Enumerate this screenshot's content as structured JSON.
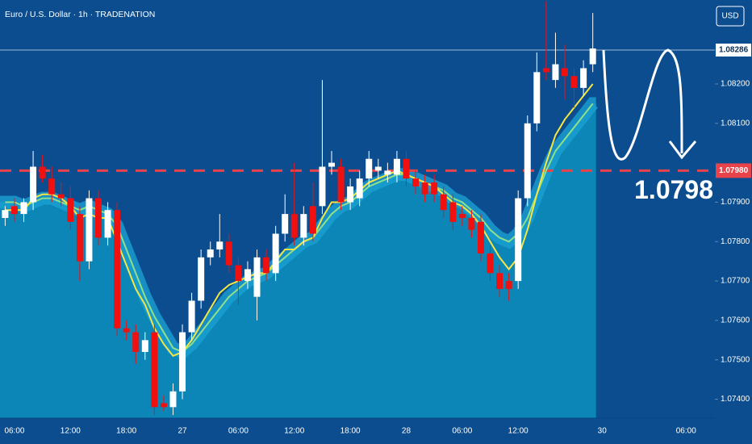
{
  "chart_data": {
    "type": "candlestick",
    "title": "Euro / U.S. Dollar · 1h · TRADENATION",
    "currency": "USD",
    "categories": [
      null,
      "06:00",
      null,
      null,
      null,
      null,
      null,
      "12:00",
      null,
      null,
      null,
      null,
      null,
      "18:00",
      null,
      null,
      null,
      null,
      null,
      "27",
      null,
      null,
      null,
      null,
      null,
      "06:00",
      null,
      null,
      null,
      null,
      null,
      "12:00",
      null,
      null,
      null,
      null,
      null,
      "18:00",
      null,
      null,
      null,
      null,
      null,
      "28",
      null,
      null,
      null,
      null,
      null,
      "06:00",
      null,
      null,
      null,
      null,
      null,
      "12:00",
      null,
      null,
      null,
      null,
      null,
      null,
      null,
      null,
      "30",
      null,
      null,
      null,
      null,
      null,
      null,
      null,
      null,
      "06:00"
    ],
    "open": [
      1.0786,
      1.0789,
      1.0787,
      1.079,
      1.0799,
      1.0796,
      1.0792,
      1.0791,
      1.0787,
      1.0775,
      1.0791,
      1.0781,
      1.0788,
      1.0758,
      1.0757,
      1.0752,
      1.0757,
      1.0739,
      1.0738,
      1.0742,
      1.0757,
      1.0765,
      1.0776,
      1.0778,
      1.078,
      1.0774,
      1.077,
      1.0766,
      1.0776,
      1.0772,
      1.0782,
      1.0787,
      1.0781,
      1.0789,
      1.0789,
      1.0799,
      1.0799,
      1.079,
      1.0791,
      1.0796,
      1.0798,
      1.0797,
      1.0797,
      1.0801,
      1.0796,
      1.0795,
      1.0795,
      1.0792,
      1.079,
      1.0787,
      1.0786,
      1.0785,
      1.0777,
      1.0772,
      1.077,
      1.077,
      1.0791,
      1.081,
      1.0824,
      1.0821,
      1.0824,
      1.0822,
      1.0819,
      1.0825,
      null,
      null,
      null,
      null,
      null,
      null,
      null,
      null,
      null,
      null
    ],
    "high": [
      1.0789,
      1.0791,
      1.0791,
      1.0803,
      1.0802,
      1.0799,
      1.0795,
      1.0794,
      1.0789,
      1.0793,
      1.0793,
      1.079,
      1.079,
      1.076,
      1.0759,
      1.0757,
      1.0759,
      1.0741,
      1.0744,
      1.0759,
      1.0767,
      1.0778,
      1.078,
      1.0787,
      1.0782,
      1.0776,
      1.0775,
      1.0778,
      1.0778,
      1.0784,
      1.0792,
      1.08,
      1.0789,
      1.0795,
      1.0821,
      1.0803,
      1.0801,
      1.0796,
      1.0798,
      1.0803,
      1.0801,
      1.08,
      1.0803,
      1.0803,
      1.0798,
      1.0797,
      1.0797,
      1.0794,
      1.0792,
      1.0789,
      1.0788,
      1.0787,
      1.0779,
      1.0774,
      1.0772,
      1.0793,
      1.0812,
      1.0828,
      1.0841,
      1.0833,
      1.083,
      1.0824,
      1.0826,
      1.0838,
      null,
      null,
      null,
      null,
      null,
      null,
      null,
      null,
      null,
      null
    ],
    "low": [
      1.0784,
      1.0785,
      1.0785,
      1.0788,
      1.0795,
      1.079,
      1.0789,
      1.0783,
      1.077,
      1.0773,
      1.0779,
      1.0779,
      1.0756,
      1.0755,
      1.0749,
      1.075,
      1.0736,
      1.0737,
      1.0736,
      1.074,
      1.0755,
      1.0763,
      1.0774,
      1.0776,
      1.0772,
      1.0764,
      1.0768,
      1.076,
      1.077,
      1.077,
      1.078,
      1.0779,
      1.0779,
      1.078,
      1.0787,
      1.0797,
      1.0788,
      1.0788,
      1.0789,
      1.0794,
      1.0796,
      1.0795,
      1.0795,
      1.0794,
      1.0792,
      1.079,
      1.079,
      1.0786,
      1.0783,
      1.0784,
      1.0781,
      1.0775,
      1.077,
      1.0766,
      1.0765,
      1.0768,
      1.0789,
      1.0808,
      1.0821,
      1.0819,
      1.0816,
      1.0814,
      1.0817,
      1.0823,
      null,
      null,
      null,
      null,
      null,
      null,
      null,
      null,
      null,
      null
    ],
    "close": [
      1.0788,
      1.0787,
      1.079,
      1.0799,
      1.0796,
      1.0792,
      1.0791,
      1.0785,
      1.0775,
      1.0791,
      1.0781,
      1.0788,
      1.0758,
      1.0757,
      1.0752,
      1.0755,
      1.0738,
      1.0738,
      1.0742,
      1.0757,
      1.0765,
      1.0776,
      1.0778,
      1.078,
      1.0774,
      1.077,
      1.0773,
      1.0776,
      1.0772,
      1.0782,
      1.0787,
      1.0781,
      1.0787,
      1.0782,
      1.0799,
      1.08,
      1.079,
      1.0794,
      1.0796,
      1.0801,
      1.0799,
      1.0798,
      1.0801,
      1.0796,
      1.0794,
      1.0792,
      1.0792,
      1.0788,
      1.0785,
      1.0786,
      1.0783,
      1.0777,
      1.0772,
      1.0768,
      1.0768,
      1.0791,
      1.081,
      1.0823,
      1.0823,
      1.0825,
      1.0822,
      1.0819,
      1.0824,
      1.0829,
      null,
      null,
      null,
      null,
      null,
      null,
      null,
      null,
      null,
      null
    ],
    "ma_fast": [
      1.0788,
      1.0788,
      1.0788,
      1.0791,
      1.0792,
      1.0792,
      1.0791,
      1.0789,
      1.0786,
      1.0787,
      1.0786,
      1.0786,
      1.078,
      1.0774,
      1.0768,
      1.0764,
      1.0758,
      1.0754,
      1.0751,
      1.0752,
      1.0755,
      1.0759,
      1.0763,
      1.0767,
      1.0769,
      1.077,
      1.0771,
      1.0772,
      1.0772,
      1.0775,
      1.0778,
      1.0778,
      1.078,
      1.0781,
      1.0786,
      1.079,
      1.079,
      1.0791,
      1.0793,
      1.0795,
      1.0796,
      1.0797,
      1.0798,
      1.0797,
      1.0796,
      1.0795,
      1.0794,
      1.0792,
      1.079,
      1.0789,
      1.0787,
      1.0784,
      1.078,
      1.0776,
      1.0773,
      1.0776,
      1.0783,
      1.0792,
      1.08,
      1.0807,
      1.0811,
      1.0814,
      1.0817,
      1.082,
      null,
      null,
      null,
      null,
      null,
      null,
      null,
      null,
      null,
      null
    ],
    "ma_slow": [
      1.079,
      1.079,
      1.0789,
      1.079,
      1.0791,
      1.0791,
      1.079,
      1.0789,
      1.0788,
      1.0789,
      1.0788,
      1.0787,
      1.0784,
      1.0778,
      1.0772,
      1.0766,
      1.0761,
      1.0757,
      1.0753,
      1.0752,
      1.0754,
      1.0757,
      1.076,
      1.0763,
      1.0766,
      1.0768,
      1.077,
      1.0771,
      1.0772,
      1.0774,
      1.0776,
      1.0778,
      1.078,
      1.0781,
      1.0784,
      1.0787,
      1.0789,
      1.079,
      1.0792,
      1.0794,
      1.0795,
      1.0796,
      1.0797,
      1.0797,
      1.0796,
      1.0795,
      1.0794,
      1.0793,
      1.0791,
      1.079,
      1.0788,
      1.0786,
      1.0783,
      1.0781,
      1.078,
      1.0782,
      1.0786,
      1.0792,
      1.0798,
      1.0803,
      1.0806,
      1.0809,
      1.0812,
      1.0815,
      null,
      null,
      null,
      null,
      null,
      null,
      null,
      null,
      null,
      null
    ],
    "colors": {
      "up": "#ffffff",
      "down": "#f01010",
      "fast": "#f5e642",
      "slow": "#8ee08a",
      "area": "#0b86b6",
      "band": "#1aa0d2",
      "level": "#e8434b",
      "background": "#0b4d8e"
    },
    "ylim": [
      1.07352,
      1.08413
    ],
    "yticks": [
      {
        "value": 1.074,
        "label": "1.07400"
      },
      {
        "value": 1.075,
        "label": "1.07500"
      },
      {
        "value": 1.076,
        "label": "1.07600"
      },
      {
        "value": 1.077,
        "label": "1.07700"
      },
      {
        "value": 1.078,
        "label": "1.07800"
      },
      {
        "value": 1.079,
        "label": "1.07900"
      },
      {
        "value": 1.081,
        "label": "1.08100"
      },
      {
        "value": 1.082,
        "label": "1.08200"
      }
    ],
    "last_price": {
      "value": 1.08286,
      "label": "1.08286"
    },
    "level": {
      "value": 1.0798,
      "label": "1.07980"
    },
    "annotation": "1.0798"
  }
}
